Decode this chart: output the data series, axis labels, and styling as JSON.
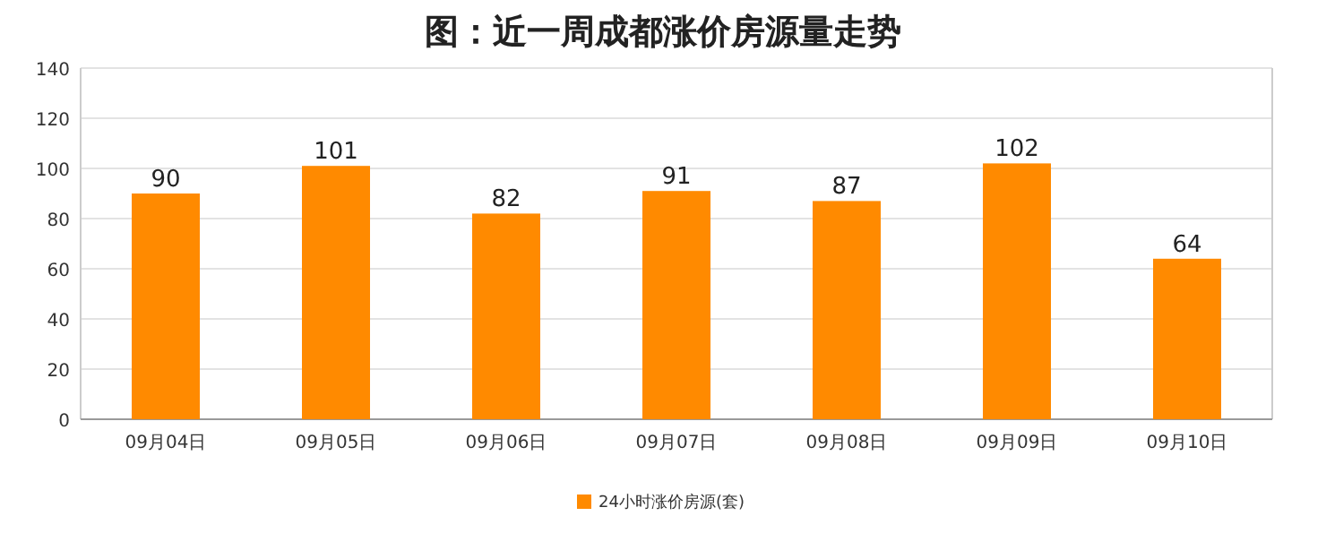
{
  "chart_data": {
    "type": "bar",
    "title": "图：近一周成都涨价房源量走势",
    "categories": [
      "09月04日",
      "09月05日",
      "09月06日",
      "09月07日",
      "09月08日",
      "09月09日",
      "09月10日"
    ],
    "series": [
      {
        "name": "24小时涨价房源(套)",
        "color": "#ff8a00",
        "values": [
          90,
          101,
          82,
          91,
          87,
          102,
          64
        ]
      }
    ],
    "ylim": [
      0,
      140
    ],
    "yticks": [
      0,
      20,
      40,
      60,
      80,
      100,
      120,
      140
    ],
    "grid": "y",
    "legend": "bottom",
    "data_labels": true
  }
}
